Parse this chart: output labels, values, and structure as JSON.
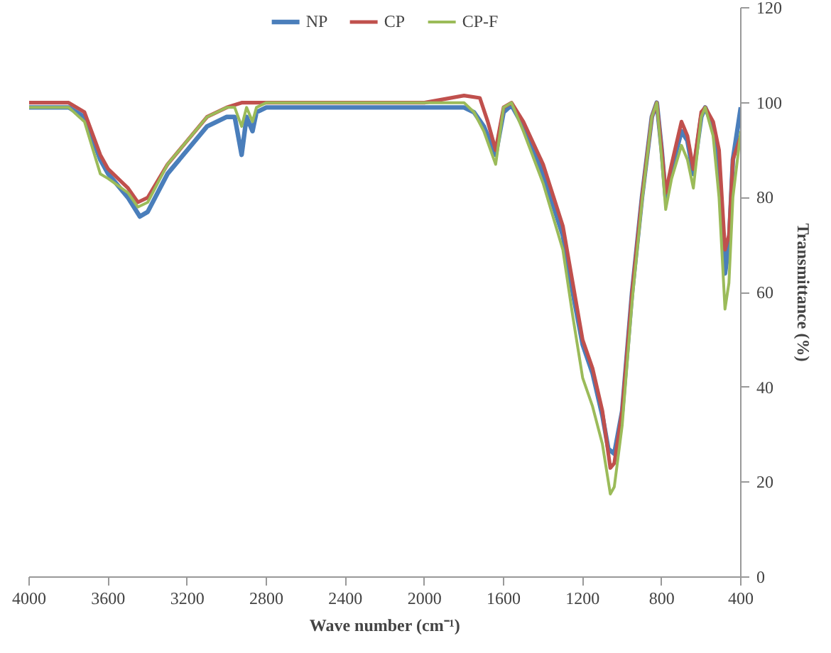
{
  "chart_data": {
    "type": "line",
    "xlabel": "Wave number (cm⁻¹)",
    "y2label": "Transmittance (%)",
    "legend": "top",
    "grid": false,
    "xlim": [
      4000,
      400
    ],
    "xticks": [
      4000,
      3600,
      3200,
      2800,
      2400,
      2000,
      1600,
      1200,
      800,
      400
    ],
    "y2lim": [
      0,
      120
    ],
    "y2ticks": [
      0,
      20,
      40,
      60,
      80,
      100,
      120
    ],
    "series": [
      {
        "name": "NP",
        "color": "#4a7ebb",
        "axis": "y2",
        "x": [
          4000,
          3800,
          3720,
          3640,
          3600,
          3500,
          3440,
          3400,
          3300,
          3200,
          3100,
          3000,
          2960,
          2925,
          2900,
          2870,
          2850,
          2800,
          2000,
          1800,
          1750,
          1700,
          1640,
          1600,
          1560,
          1500,
          1400,
          1300,
          1250,
          1200,
          1150,
          1100,
          1070,
          1040,
          1000,
          950,
          900,
          850,
          825,
          800,
          780,
          750,
          700,
          670,
          640,
          600,
          580,
          540,
          510,
          480,
          460,
          440,
          400
        ],
        "values": [
          99,
          99,
          97,
          88,
          85,
          80,
          76,
          77,
          85,
          90,
          95,
          97,
          97,
          89,
          97,
          94,
          98,
          99,
          99,
          99,
          98,
          95,
          89,
          98,
          99.5,
          95,
          85,
          72,
          60,
          49,
          43,
          34,
          27,
          26,
          35,
          60,
          80,
          97,
          100,
          90,
          80,
          86,
          94,
          92,
          85,
          97,
          99,
          95,
          85,
          64,
          70,
          88,
          99
        ]
      },
      {
        "name": "CP",
        "color": "#c0504d",
        "axis": "y2",
        "x": [
          4000,
          3800,
          3720,
          3640,
          3600,
          3500,
          3450,
          3400,
          3300,
          3200,
          3100,
          3000,
          2925,
          2800,
          2000,
          1800,
          1720,
          1680,
          1640,
          1600,
          1560,
          1500,
          1400,
          1300,
          1250,
          1200,
          1150,
          1100,
          1060,
          1040,
          1000,
          950,
          900,
          850,
          825,
          800,
          780,
          750,
          700,
          670,
          640,
          600,
          580,
          540,
          510,
          480,
          460,
          440,
          400
        ],
        "values": [
          100,
          100,
          98,
          89,
          86,
          82,
          79,
          80,
          87,
          92,
          97,
          99,
          100,
          100,
          100,
          101.5,
          101,
          96,
          90,
          99,
          100,
          96,
          87,
          74,
          62,
          50,
          44,
          35,
          23,
          24,
          35,
          60,
          80,
          97,
          100,
          90,
          81,
          87,
          96,
          93,
          86,
          98,
          99,
          96,
          90,
          69,
          72,
          88,
          93
        ]
      },
      {
        "name": "CP-F",
        "color": "#9bbb59",
        "axis": "y2",
        "x": [
          4000,
          3800,
          3720,
          3640,
          3600,
          3500,
          3450,
          3400,
          3300,
          3200,
          3100,
          3000,
          2960,
          2925,
          2900,
          2870,
          2850,
          2800,
          2000,
          1800,
          1750,
          1700,
          1640,
          1600,
          1560,
          1500,
          1400,
          1300,
          1250,
          1200,
          1150,
          1100,
          1060,
          1040,
          1000,
          950,
          900,
          850,
          825,
          800,
          780,
          750,
          700,
          670,
          640,
          600,
          580,
          540,
          510,
          480,
          460,
          440,
          400
        ],
        "values": [
          99,
          99,
          96,
          85,
          84,
          81,
          78,
          79,
          87,
          92,
          97,
          99,
          99,
          95,
          99,
          96,
          99,
          100,
          100,
          100,
          98,
          94,
          87,
          99,
          100,
          94,
          83,
          69,
          55,
          42,
          36,
          28,
          17.5,
          19,
          32,
          58,
          79,
          97,
          100,
          88,
          77.5,
          84,
          91,
          88,
          82,
          97,
          99,
          93,
          80,
          56.5,
          62,
          80,
          94
        ]
      }
    ]
  }
}
